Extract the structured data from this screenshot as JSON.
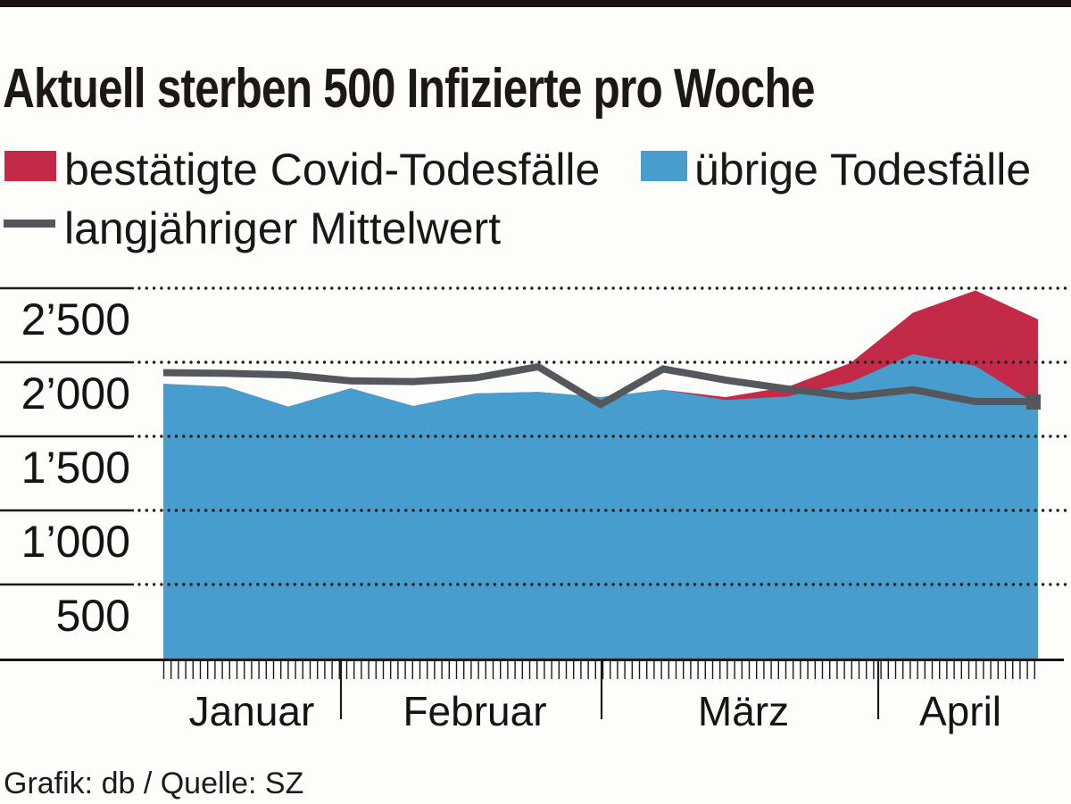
{
  "page": {
    "title": "Aktuell sterben 500 Infizierte pro Woche",
    "footer_credit": "Grafik: db / Quelle: SZ"
  },
  "legend": {
    "items": [
      {
        "label": "bestätigte Covid-Todesfälle",
        "color": "#c22a47",
        "swatch": "square"
      },
      {
        "label": "übrige Todesfälle",
        "color": "#489dcf",
        "swatch": "square"
      },
      {
        "label": "langjähriger Mittelwert",
        "color": "#54585c",
        "swatch": "line"
      }
    ]
  },
  "chart_data": {
    "type": "area",
    "stacked": true,
    "title": "Aktuell sterben 500 Infizierte pro Woche",
    "x_axis": {
      "unit": "Woche",
      "months": [
        "Januar",
        "Februar",
        "März",
        "April"
      ]
    },
    "y_axis": {
      "tick_labels": [
        "2’500",
        "2’000",
        "1’500",
        "1’000",
        "500"
      ],
      "tick_values": [
        2500,
        2000,
        1500,
        1000,
        500
      ],
      "ylim": [
        0,
        2600
      ]
    },
    "grid": "dotted-horizontal",
    "legend_position": "top-left",
    "series": [
      {
        "name": "bestätigte Covid-Todesfälle",
        "type": "area",
        "color": "#c22a47",
        "stacked_on": "übrige Todesfälle",
        "values": [
          0,
          0,
          0,
          0,
          0,
          0,
          0,
          0,
          0,
          20,
          65,
          130,
          280,
          510,
          580
        ]
      },
      {
        "name": "übrige Todesfälle",
        "type": "area",
        "color": "#489dcf",
        "values": [
          1855,
          1835,
          1700,
          1825,
          1705,
          1790,
          1800,
          1765,
          1815,
          1745,
          1770,
          1865,
          2055,
          1975,
          1710
        ]
      },
      {
        "name": "langjähriger Mittelwert",
        "type": "line",
        "color": "#54585c",
        "values": [
          1930,
          1925,
          1915,
          1875,
          1870,
          1895,
          1970,
          1715,
          1955,
          1880,
          1820,
          1770,
          1815,
          1735,
          1735
        ]
      }
    ]
  }
}
